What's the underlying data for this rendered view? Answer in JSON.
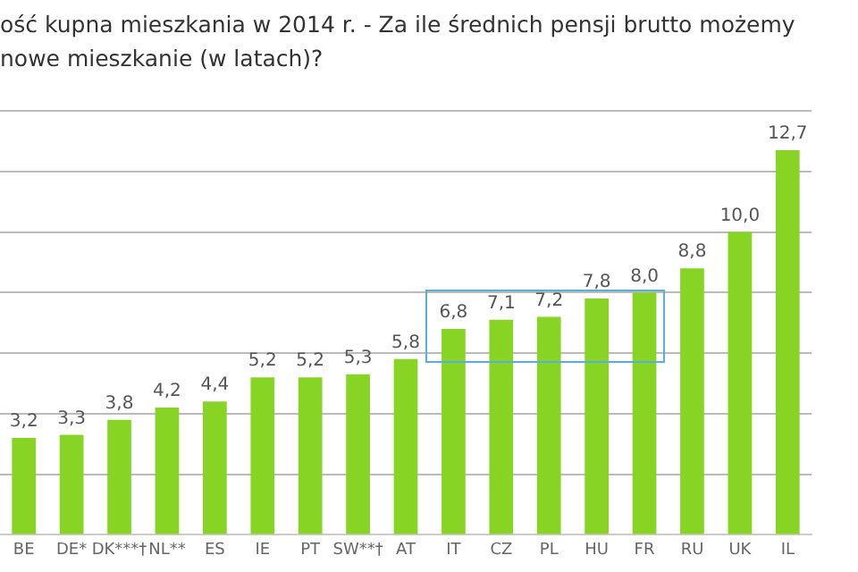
{
  "chart_data": {
    "type": "bar",
    "title": "ość kupna mieszkania w 2014 r. - Za ile średnich pensji brutto możemy\nnowe mieszkanie (w latach)?",
    "categories": [
      "BE",
      "DE*",
      "DK***†",
      "NL**",
      "ES",
      "IE",
      "PT",
      "SW**†",
      "AT",
      "IT",
      "CZ",
      "PL",
      "HU",
      "FR",
      "RU",
      "UK",
      "IL"
    ],
    "values": [
      3.2,
      3.3,
      3.8,
      4.2,
      4.4,
      5.2,
      5.2,
      5.3,
      5.8,
      6.8,
      7.1,
      7.2,
      7.8,
      8.0,
      8.8,
      10.0,
      12.7
    ],
    "value_labels": [
      "3,2",
      "3,3",
      "3,8",
      "4,2",
      "4,4",
      "5,2",
      "5,2",
      "5,3",
      "5,8",
      "6,8",
      "7,1",
      "7,2",
      "7,8",
      "8,0",
      "8,8",
      "10,0",
      "12,7"
    ],
    "color": "#88d424",
    "grid": "y",
    "tick_labels": "x",
    "legend": false
  }
}
